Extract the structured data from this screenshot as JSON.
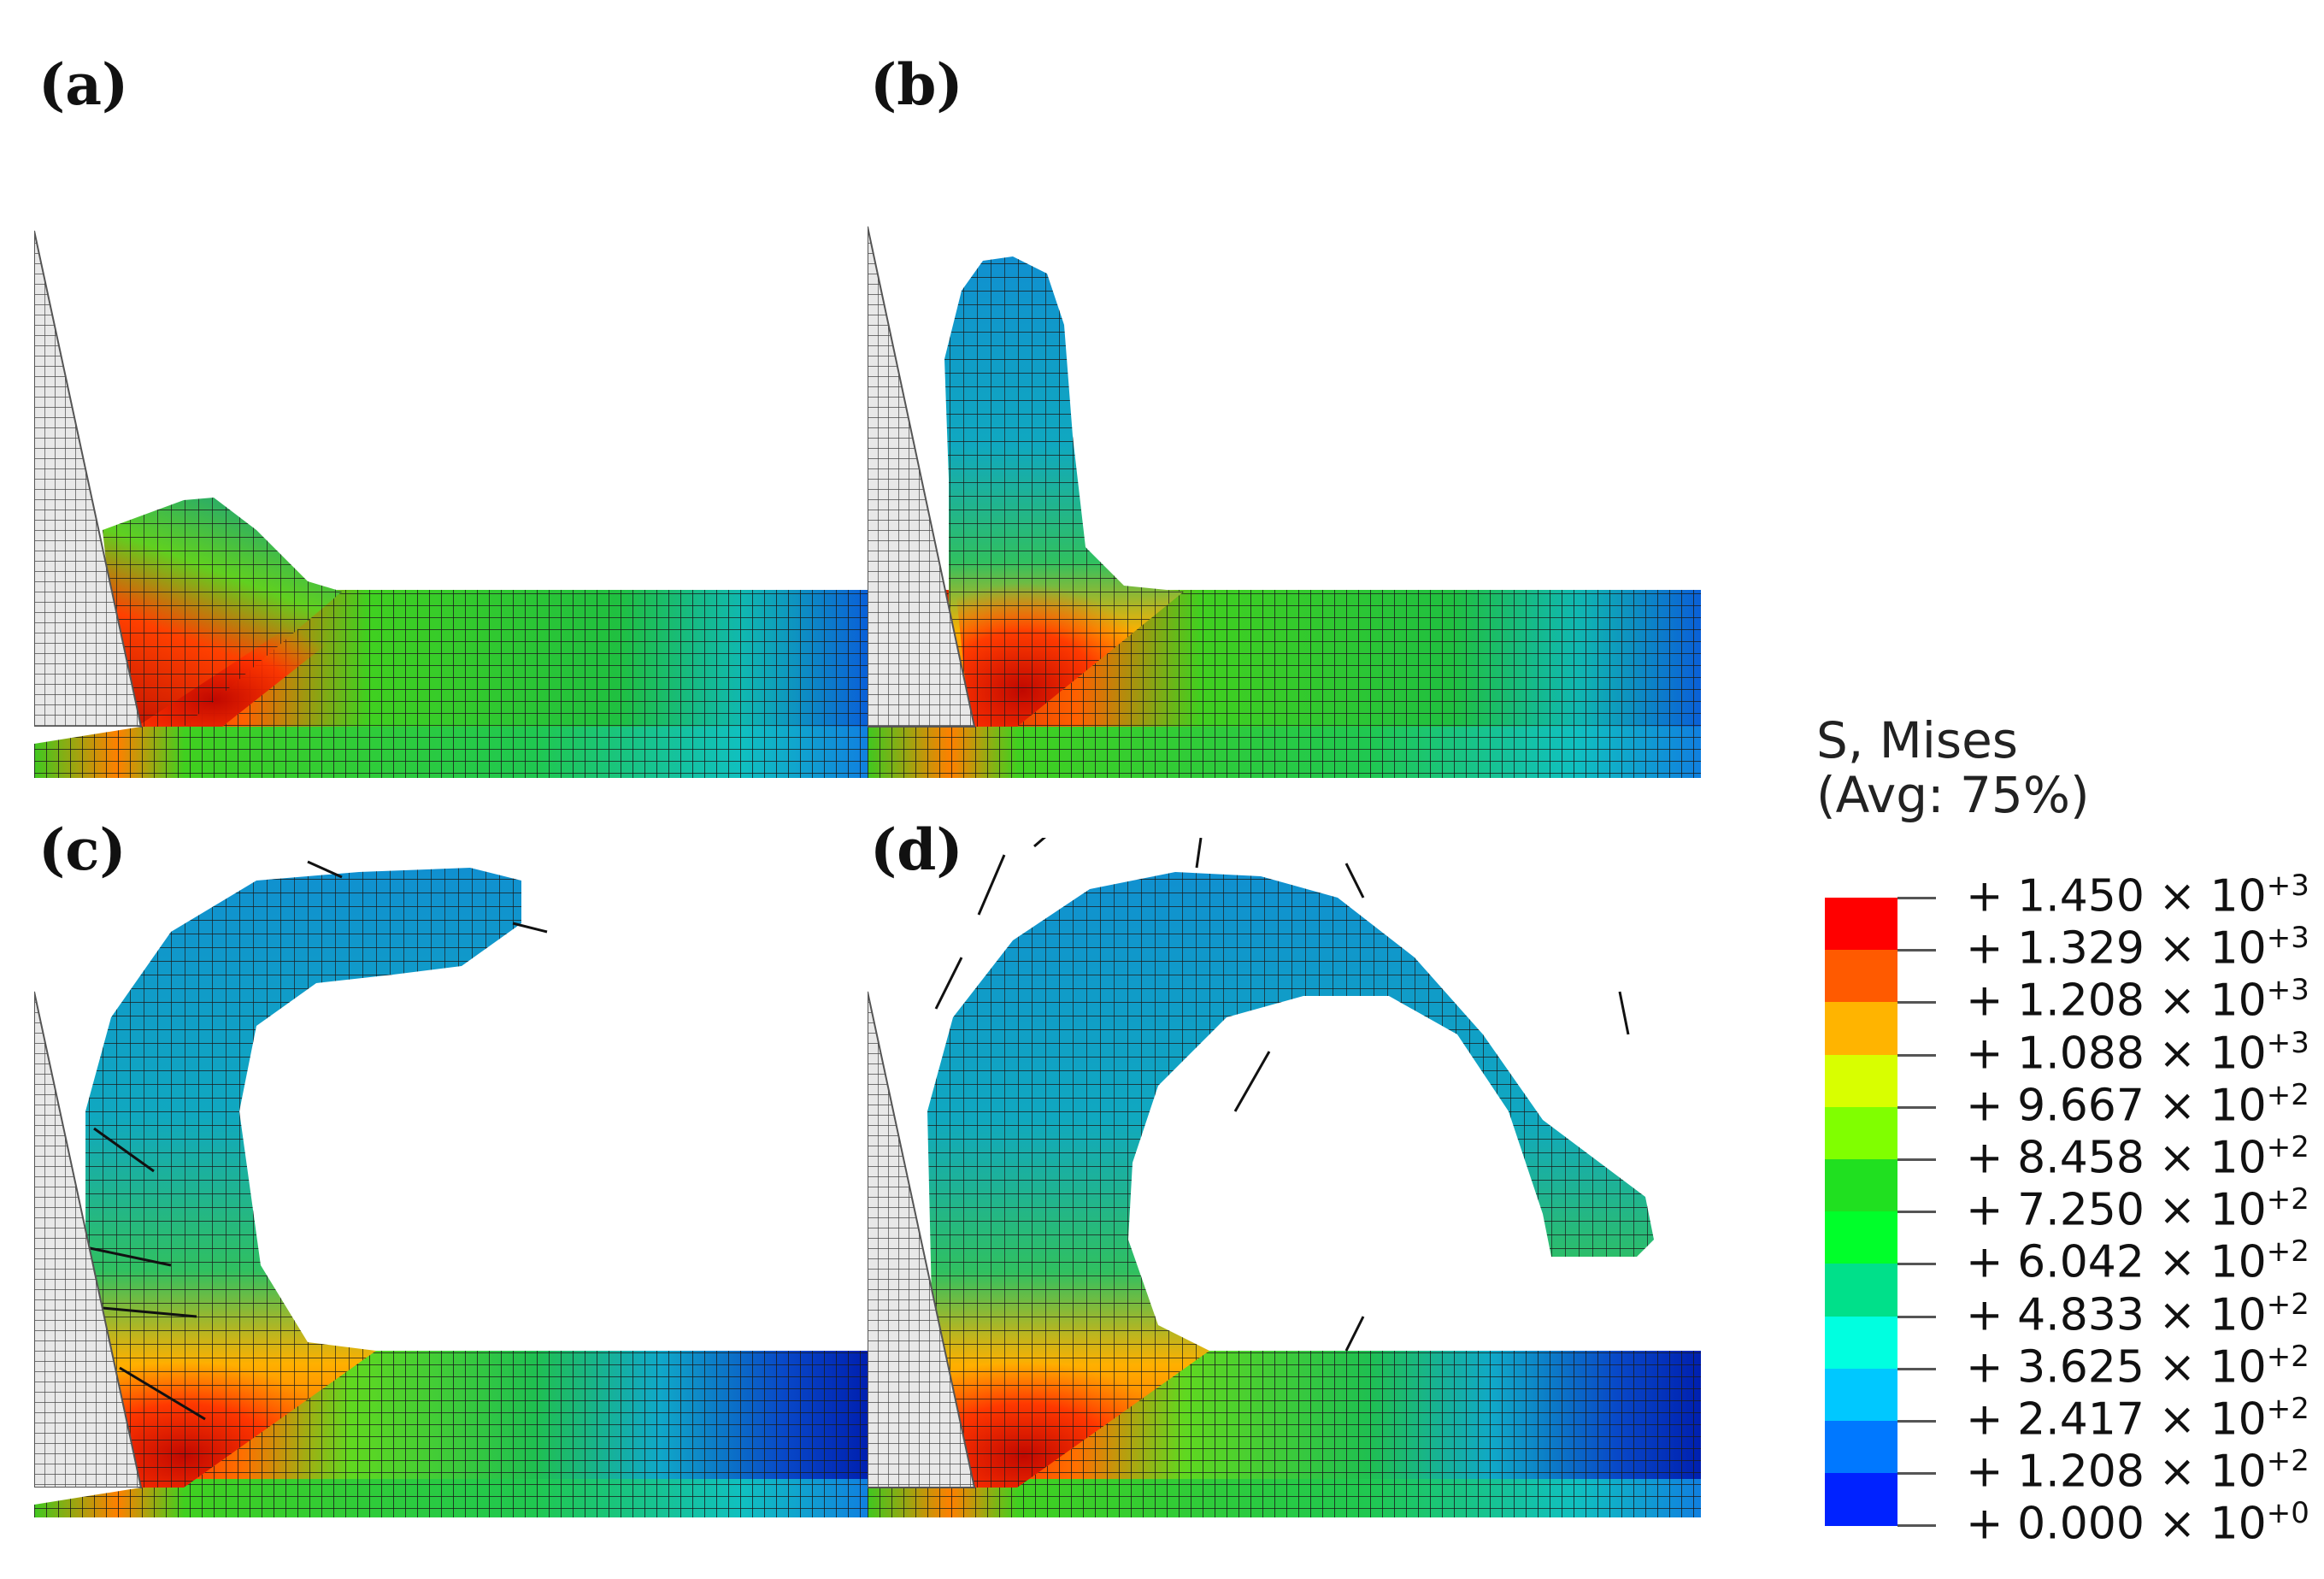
{
  "panels": [
    {
      "id": "a",
      "label": "(a)"
    },
    {
      "id": "b",
      "label": "(b)"
    },
    {
      "id": "c",
      "label": "(c)"
    },
    {
      "id": "d",
      "label": "(d)"
    }
  ],
  "legend": {
    "title_line1": "S, Mises",
    "title_line2": "(Avg: 75%)",
    "entries": [
      {
        "mantissa": "+ 1.450 × 10",
        "exp": "+3"
      },
      {
        "mantissa": "+ 1.329 × 10",
        "exp": "+3"
      },
      {
        "mantissa": "+ 1.208 × 10",
        "exp": "+3"
      },
      {
        "mantissa": "+ 1.088 × 10",
        "exp": "+3"
      },
      {
        "mantissa": "+ 9.667 × 10",
        "exp": "+2"
      },
      {
        "mantissa": "+ 8.458 × 10",
        "exp": "+2"
      },
      {
        "mantissa": "+ 7.250 × 10",
        "exp": "+2"
      },
      {
        "mantissa": "+ 6.042 × 10",
        "exp": "+2"
      },
      {
        "mantissa": "+ 4.833 × 10",
        "exp": "+2"
      },
      {
        "mantissa": "+ 3.625 × 10",
        "exp": "+2"
      },
      {
        "mantissa": "+ 2.417 × 10",
        "exp": "+2"
      },
      {
        "mantissa": "+ 1.208 × 10",
        "exp": "+2"
      },
      {
        "mantissa": "+ 0.000 × 10",
        "exp": "+0"
      }
    ],
    "colors": [
      "#ff0000",
      "#ff5a00",
      "#ffb400",
      "#d8ff00",
      "#80ff00",
      "#20e020",
      "#00ff2a",
      "#00e08a",
      "#00ffe0",
      "#00c8ff",
      "#0078ff",
      "#0022ff"
    ]
  }
}
